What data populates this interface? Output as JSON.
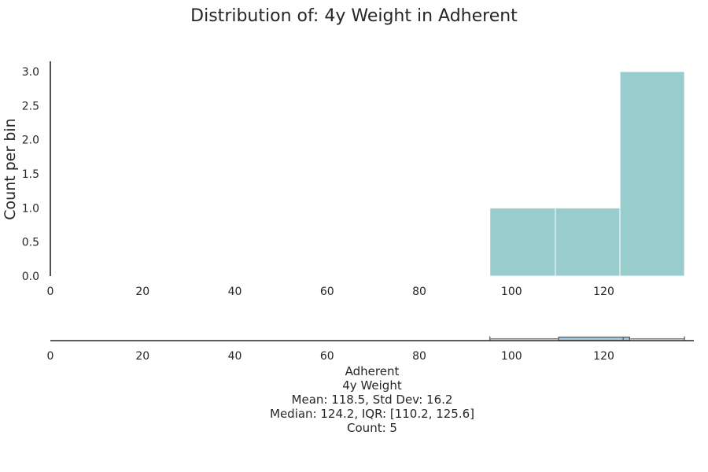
{
  "chart_data": {
    "type": "bar",
    "title": "Distribution of: 4y Weight in Adherent",
    "ylabel": "Count per bin",
    "xlabel": "",
    "xlim": [
      0,
      140
    ],
    "ylim": [
      0,
      3.15
    ],
    "x_ticks": [
      "0",
      "20",
      "40",
      "60",
      "80",
      "100",
      "120"
    ],
    "y_ticks": [
      "0.0",
      "0.5",
      "1.0",
      "1.5",
      "2.0",
      "2.5",
      "3.0"
    ],
    "bar_color": "#99cccc",
    "box_color": "#9ecae1",
    "bins": [
      {
        "start": 95.3,
        "end": 109.5,
        "count": 1
      },
      {
        "start": 109.5,
        "end": 123.5,
        "count": 1
      },
      {
        "start": 123.5,
        "end": 137.5,
        "count": 3
      }
    ],
    "boxplot": {
      "min": 95.3,
      "q1": 110.2,
      "median": 124.2,
      "q3": 125.6,
      "max": 137.5
    },
    "stats_lines": [
      "Adherent",
      "4y Weight",
      "Mean: 118.5, Std Dev: 16.2",
      "Median: 124.2, IQR: [110.2, 125.6]",
      "Count: 5"
    ]
  }
}
